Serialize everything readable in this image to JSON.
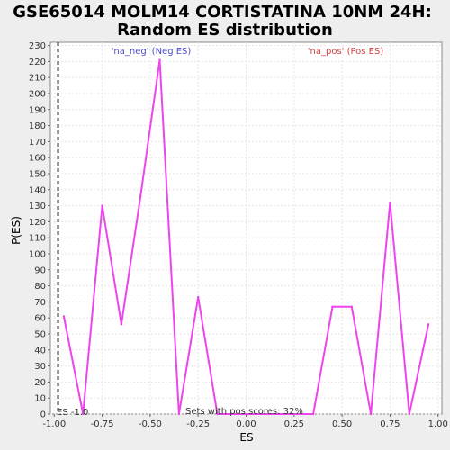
{
  "chart_data": {
    "type": "line",
    "title_lines": [
      "GSE65014 MOLM14 CORTISTATINA 10NM 24H:",
      "Random ES distribution"
    ],
    "xlabel": "ES",
    "ylabel": "P(ES)",
    "xlim": [
      -1.02,
      1.02
    ],
    "ylim": [
      0,
      232
    ],
    "x_ticks": [
      "-1.00",
      "-0.75",
      "-0.50",
      "-0.25",
      "0.00",
      "0.25",
      "0.50",
      "0.75",
      "1.00"
    ],
    "x_tick_values": [
      -1.0,
      -0.75,
      -0.5,
      -0.25,
      0.0,
      0.25,
      0.5,
      0.75,
      1.0
    ],
    "y_ticks": [
      0,
      10,
      20,
      30,
      40,
      50,
      60,
      70,
      80,
      90,
      100,
      110,
      120,
      130,
      140,
      150,
      160,
      170,
      180,
      190,
      200,
      210,
      220,
      230
    ],
    "grid": true,
    "legend": [
      {
        "label": "'na_neg' (Neg ES)",
        "color": "#4b4bc8",
        "placement": "top-left"
      },
      {
        "label": "'na_pos' (Pos ES)",
        "color": "#d44040",
        "placement": "top-right"
      }
    ],
    "series": [
      {
        "color": "#ee44ee",
        "x": [
          -0.95,
          -0.85,
          -0.75,
          -0.65,
          -0.55,
          -0.45,
          -0.35,
          -0.25,
          -0.15,
          0.35,
          0.45,
          0.55,
          0.65,
          0.75,
          0.85,
          0.95
        ],
        "y": [
          61,
          0,
          130,
          56,
          136,
          221,
          0,
          73,
          0,
          0,
          67,
          67,
          0,
          132,
          0,
          56
        ]
      }
    ],
    "vline": {
      "x": -0.98,
      "label": "ES -1.0",
      "style": "dashed"
    },
    "annotation": "Sets with pos scores: 32%"
  }
}
